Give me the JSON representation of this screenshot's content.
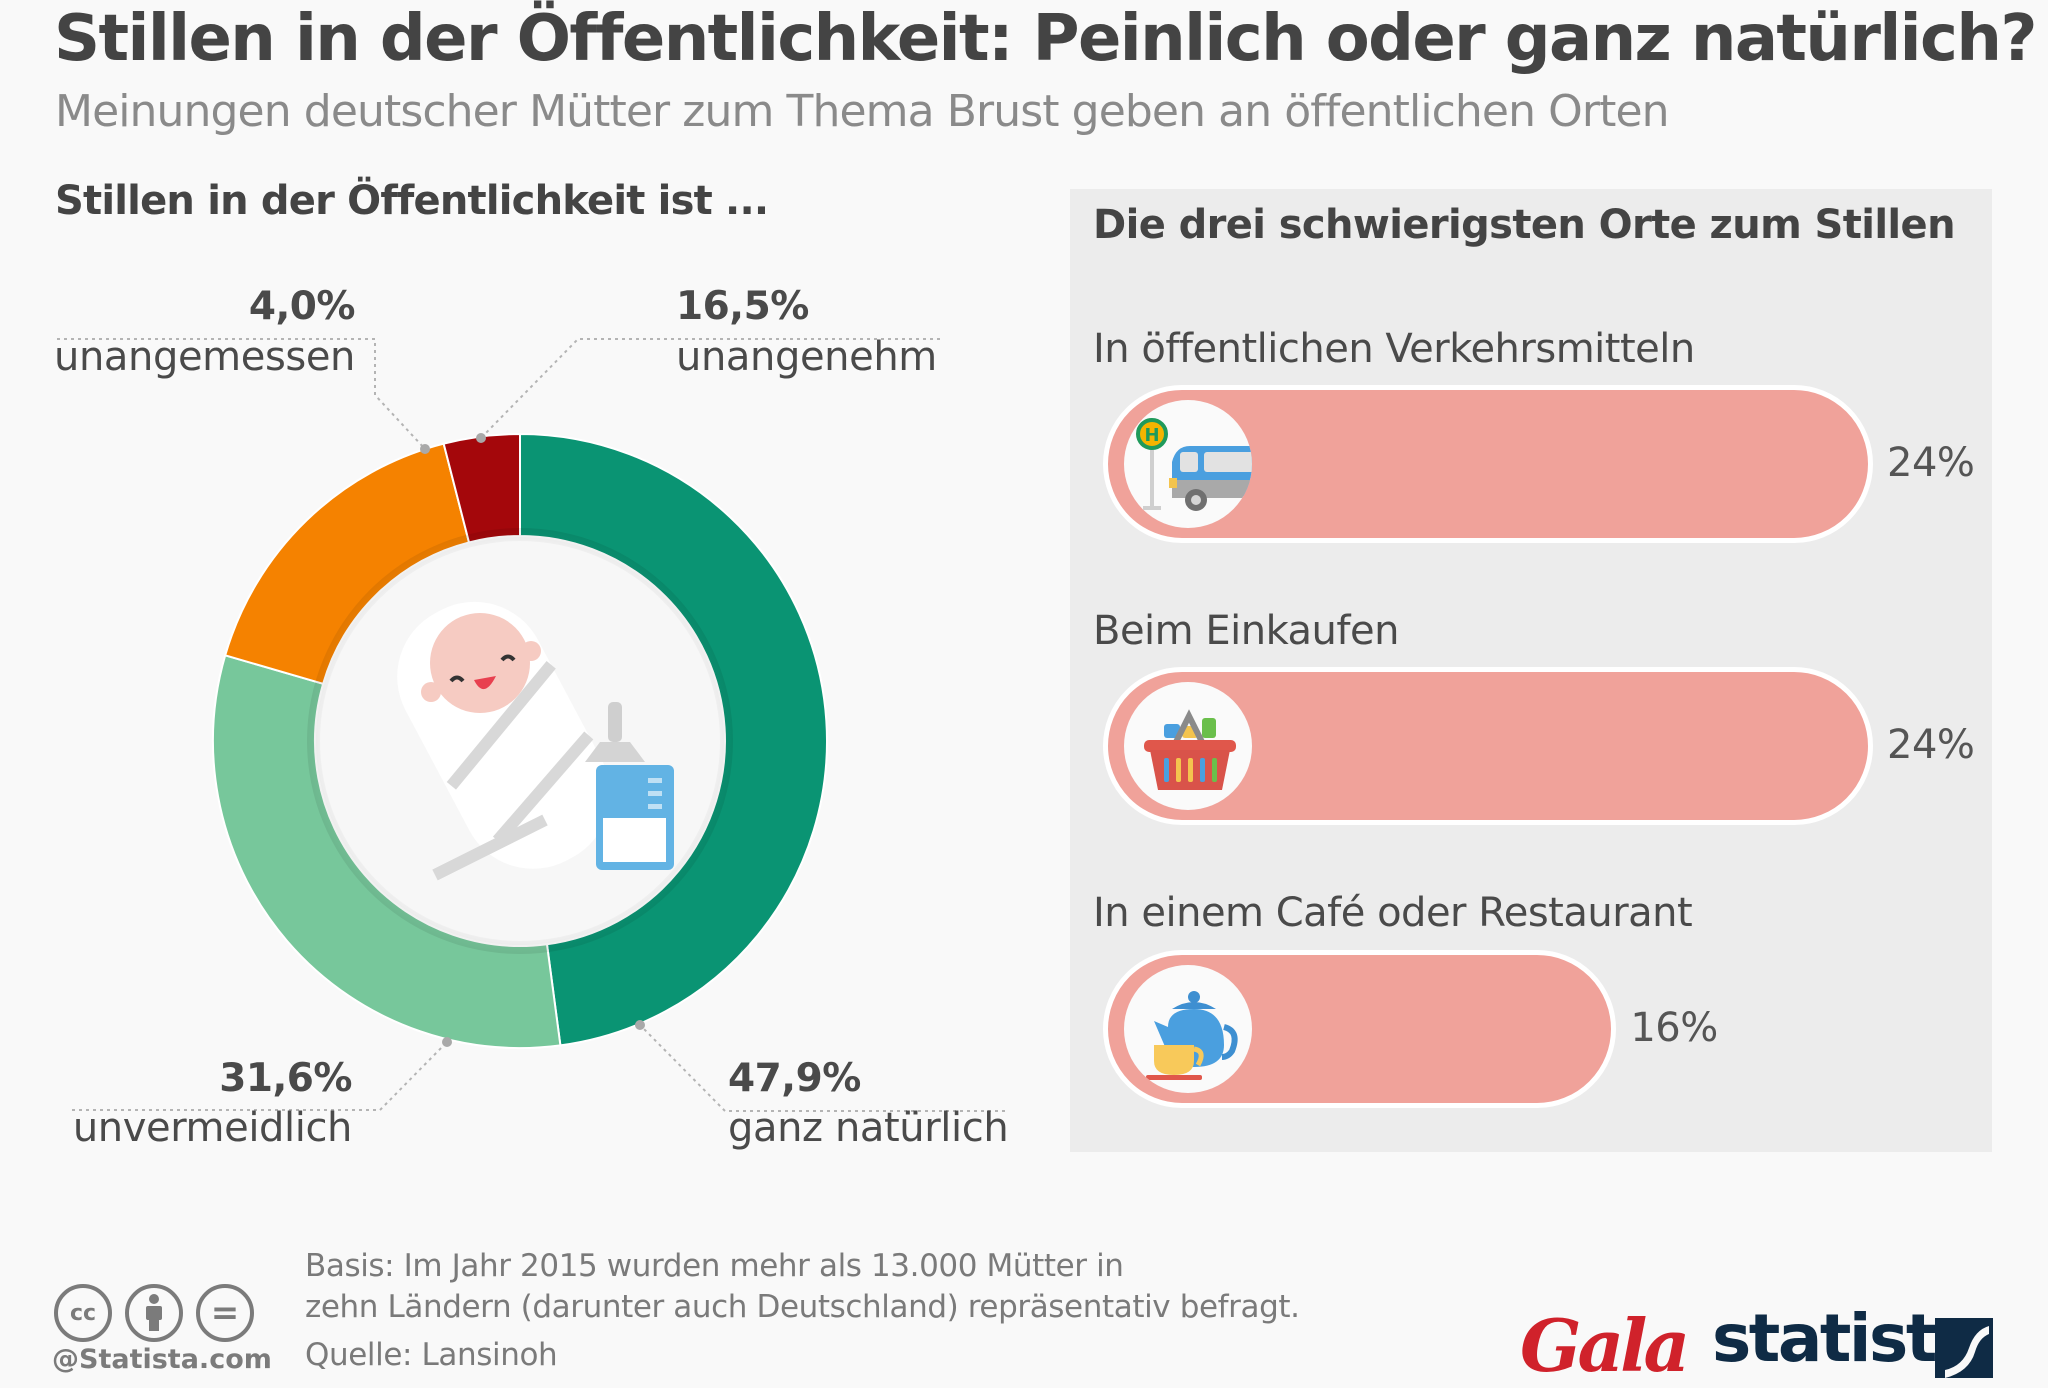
{
  "header": {
    "title": "Stillen in der Öffentlichkeit: Peinlich oder ganz natürlich?",
    "subtitle": "Meinungen deutscher Mütter zum Thema Brust geben an öffentlichen Orten"
  },
  "donut_section": {
    "heading": "Stillen in der Öffentlichkeit ist ...",
    "center_icon": "baby-with-bottle-illustration"
  },
  "bars_section": {
    "heading": "Die drei schwierigsten Orte zum Stillen"
  },
  "chart_data": [
    {
      "type": "pie",
      "variant": "donut",
      "title": "Stillen in der Öffentlichkeit ist ...",
      "unit": "%",
      "start": "top",
      "direction": "clockwise",
      "slices": [
        {
          "label": "ganz natürlich",
          "value": 47.9,
          "value_label": "47,9%",
          "color": "#0a9473"
        },
        {
          "label": "unvermeidlich",
          "value": 31.6,
          "value_label": "31,6%",
          "color": "#77c79b"
        },
        {
          "label": "unangenehm",
          "value": 16.5,
          "value_label": "16,5%",
          "color": "#f58200"
        },
        {
          "label": "unangemessen",
          "value": 4.0,
          "value_label": "4,0%",
          "color": "#a4070b"
        }
      ]
    },
    {
      "type": "bar",
      "orientation": "horizontal",
      "title": "Die drei schwierigsten Orte zum Stillen",
      "unit": "%",
      "bar_color": "#f0a29a",
      "categories": [
        "In öffentlichen Verkehrsmitteln",
        "Beim Einkaufen",
        "In einem Café oder Restaurant"
      ],
      "values": [
        24,
        24,
        16
      ],
      "value_labels": [
        "24%",
        "24%",
        "16%"
      ],
      "icons": [
        "bus-stop-icon",
        "shopping-basket-icon",
        "teapot-cup-icon"
      ]
    }
  ],
  "footer": {
    "basis_line1": "Basis: Im Jahr 2015 wurden mehr als 13.000 Mütter in",
    "basis_line2": "zehn Ländern (darunter auch Deutschland) repräsentativ befragt.",
    "source": "Quelle: Lansinoh",
    "license_icons": [
      "cc-icon",
      "attribution-icon",
      "no-derivatives-icon"
    ],
    "license_glyphs": [
      "cc",
      "",
      "="
    ],
    "handle": "@Statista.com",
    "partner_logo": "Gala",
    "brand_logo": "statista"
  }
}
